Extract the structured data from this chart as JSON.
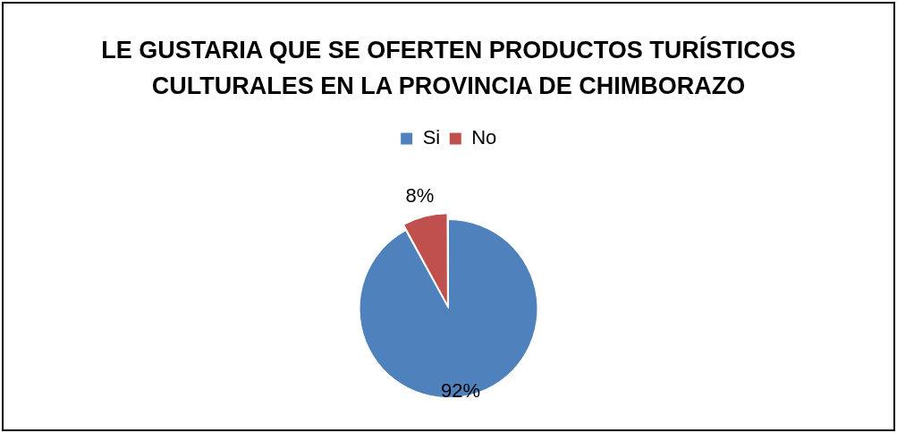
{
  "chart_data": {
    "type": "pie",
    "title": "LE GUSTARIA QUE SE OFERTEN PRODUCTOS TURÍSTICOS CULTURALES EN LA PROVINCIA DE CHIMBORAZO",
    "categories": [
      "Si",
      "No"
    ],
    "values": [
      92,
      8
    ],
    "colors": [
      "#4f81bd",
      "#c0504d"
    ],
    "value_labels": [
      "92%",
      "8%"
    ],
    "legend": "top"
  }
}
